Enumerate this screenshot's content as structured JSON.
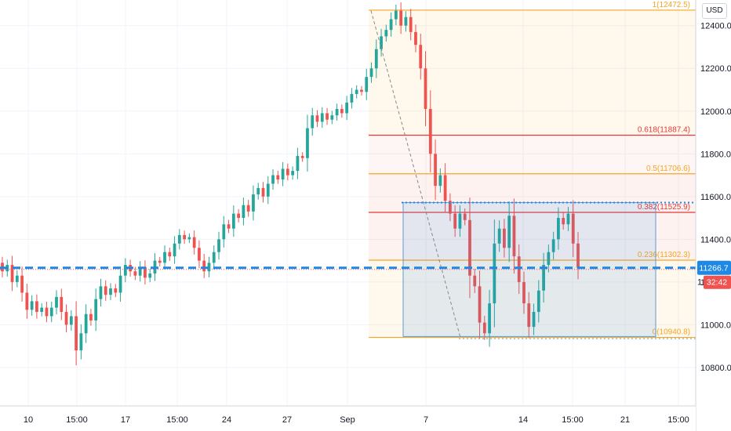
{
  "currency_button": "USD",
  "chart_data": {
    "type": "candlestick",
    "y_axis": {
      "ticks": [
        10800,
        11000,
        11200,
        11400,
        11600,
        11800,
        12000,
        12200,
        12400
      ],
      "tick_labels": [
        "10800.0",
        "11000.0",
        "11200.0",
        "11400.0",
        "11600.0",
        "11800.0",
        "12000.0",
        "12200.0",
        "12400.0"
      ],
      "range": [
        10620,
        12520
      ]
    },
    "x_axis": {
      "tick_labels": [
        "10",
        "15:00",
        "17",
        "15:00",
        "24",
        "27",
        "Sep",
        "7",
        "14",
        "15:00",
        "21",
        "15:00"
      ]
    },
    "grid": true,
    "colors": {
      "up": "#26a69a",
      "down": "#ef5350",
      "fib_orange": "#f5a623",
      "fib_red": "#e53935",
      "range_box": "#1e88e5",
      "price_line": "#1e88e5",
      "price_badge": "#ef5350"
    },
    "last_price": "11266.7",
    "countdown": "32:42",
    "horizontal_line_price": 11266.7,
    "dotted_line_price": 11572,
    "fibonacci": [
      {
        "level": "1",
        "price": 12472.5,
        "label": "1(12472.5)",
        "color": "#f5a623"
      },
      {
        "level": "0.618",
        "price": 11887.4,
        "label": "0.618(11887.4)",
        "color": "#e53935"
      },
      {
        "level": "0.5",
        "price": 11706.6,
        "label": "0.5(11706.6)",
        "color": "#f5a623"
      },
      {
        "level": "0.382",
        "price": 11525.9,
        "label": "0.382(11525.9)",
        "color": "#e53935"
      },
      {
        "level": "0.236",
        "price": 11302.3,
        "label": "0.236(11302.3)",
        "color": "#f5a623"
      },
      {
        "level": "0",
        "price": 10940.8,
        "label": "0(10940.8)",
        "color": "#f5a623"
      }
    ],
    "range_box": {
      "top_price": 11572,
      "bottom_price": 10945
    },
    "price_path": [
      [
        0,
        11290
      ],
      [
        5,
        11230
      ],
      [
        10,
        11160
      ],
      [
        15,
        11080
      ],
      [
        18,
        11040
      ],
      [
        22,
        11120
      ],
      [
        26,
        11060
      ],
      [
        30,
        11000
      ],
      [
        32,
        10870
      ],
      [
        35,
        11050
      ],
      [
        38,
        11180
      ],
      [
        42,
        11150
      ],
      [
        46,
        11260
      ],
      [
        50,
        11240
      ],
      [
        53,
        11300
      ],
      [
        56,
        11330
      ],
      [
        60,
        11380
      ],
      [
        64,
        11420
      ],
      [
        68,
        11400
      ],
      [
        72,
        11360
      ],
      [
        75,
        11300
      ],
      [
        78,
        11340
      ],
      [
        82,
        11470
      ],
      [
        86,
        11530
      ],
      [
        90,
        11580
      ],
      [
        94,
        11640
      ],
      [
        98,
        11700
      ],
      [
        101,
        11730
      ],
      [
        104,
        11790
      ],
      [
        107,
        11920
      ],
      [
        111,
        11990
      ],
      [
        114,
        11980
      ],
      [
        117,
        12040
      ],
      [
        120,
        12100
      ],
      [
        123,
        12160
      ],
      [
        126,
        12290
      ],
      [
        129,
        12380
      ],
      [
        132,
        12440
      ],
      [
        134,
        12470
      ],
      [
        136,
        12370
      ],
      [
        138,
        12310
      ],
      [
        140,
        12200
      ],
      [
        142,
        12010
      ],
      [
        144,
        11800
      ],
      [
        146,
        11650
      ],
      [
        148,
        11700
      ],
      [
        150,
        11580
      ],
      [
        152,
        11520
      ],
      [
        154,
        11450
      ],
      [
        156,
        11520
      ],
      [
        158,
        11490
      ],
      [
        160,
        11230
      ],
      [
        163,
        11180
      ],
      [
        165,
        11010
      ],
      [
        167,
        10960
      ],
      [
        169,
        11100
      ],
      [
        172,
        11380
      ],
      [
        175,
        11450
      ],
      [
        178,
        11360
      ],
      [
        181,
        11510
      ],
      [
        184,
        11320
      ],
      [
        186,
        11200
      ],
      [
        188,
        11100
      ],
      [
        190,
        10990
      ],
      [
        192,
        11060
      ],
      [
        194,
        11160
      ],
      [
        196,
        11280
      ],
      [
        198,
        11340
      ],
      [
        201,
        11400
      ],
      [
        204,
        11500
      ],
      [
        207,
        11470
      ],
      [
        210,
        11520
      ],
      [
        213,
        11380
      ],
      [
        215,
        11266.7
      ]
    ],
    "candles": [
      [
        11290,
        11250
      ],
      [
        11250,
        11280
      ],
      [
        11280,
        11200
      ],
      [
        11200,
        11230
      ],
      [
        11230,
        11150
      ],
      [
        11150,
        11070
      ],
      [
        11070,
        11110
      ],
      [
        11110,
        11060
      ],
      [
        11060,
        11080
      ],
      [
        11080,
        11040
      ],
      [
        11040,
        11080
      ],
      [
        11080,
        11130
      ],
      [
        11130,
        11060
      ],
      [
        11060,
        11000
      ],
      [
        11000,
        11040
      ],
      [
        11040,
        10880
      ],
      [
        10880,
        10960
      ],
      [
        10960,
        11050
      ],
      [
        11050,
        11020
      ],
      [
        11020,
        11120
      ],
      [
        11120,
        11180
      ],
      [
        11180,
        11140
      ],
      [
        11140,
        11170
      ],
      [
        11170,
        11150
      ],
      [
        11150,
        11230
      ],
      [
        11230,
        11280
      ],
      [
        11280,
        11250
      ],
      [
        11250,
        11230
      ],
      [
        11230,
        11270
      ],
      [
        11270,
        11220
      ],
      [
        11220,
        11240
      ],
      [
        11240,
        11300
      ],
      [
        11300,
        11290
      ],
      [
        11290,
        11340
      ],
      [
        11340,
        11320
      ],
      [
        11320,
        11380
      ],
      [
        11380,
        11420
      ],
      [
        11420,
        11400
      ],
      [
        11400,
        11410
      ],
      [
        11410,
        11360
      ],
      [
        11360,
        11300
      ],
      [
        11300,
        11250
      ],
      [
        11250,
        11290
      ],
      [
        11290,
        11340
      ],
      [
        11340,
        11400
      ],
      [
        11400,
        11470
      ],
      [
        11470,
        11450
      ],
      [
        11450,
        11520
      ],
      [
        11520,
        11500
      ],
      [
        11500,
        11560
      ],
      [
        11560,
        11530
      ],
      [
        11530,
        11610
      ],
      [
        11610,
        11640
      ],
      [
        11640,
        11600
      ],
      [
        11600,
        11660
      ],
      [
        11660,
        11700
      ],
      [
        11700,
        11680
      ],
      [
        11680,
        11730
      ],
      [
        11730,
        11700
      ],
      [
        11700,
        11720
      ],
      [
        11720,
        11790
      ],
      [
        11790,
        11780
      ],
      [
        11780,
        11920
      ],
      [
        11920,
        11980
      ],
      [
        11980,
        11950
      ],
      [
        11950,
        11990
      ],
      [
        11990,
        11960
      ],
      [
        11960,
        11980
      ],
      [
        11980,
        12010
      ],
      [
        12010,
        11990
      ],
      [
        11990,
        12040
      ],
      [
        12040,
        12080
      ],
      [
        12080,
        12100
      ],
      [
        12100,
        12090
      ],
      [
        12090,
        12160
      ],
      [
        12160,
        12200
      ],
      [
        12200,
        12290
      ],
      [
        12290,
        12350
      ],
      [
        12350,
        12380
      ],
      [
        12380,
        12430
      ],
      [
        12430,
        12470
      ],
      [
        12470,
        12400
      ],
      [
        12400,
        12440
      ],
      [
        12440,
        12370
      ],
      [
        12370,
        12310
      ],
      [
        12310,
        12200
      ],
      [
        12200,
        12010
      ],
      [
        12010,
        11800
      ],
      [
        11800,
        11650
      ],
      [
        11650,
        11700
      ],
      [
        11700,
        11580
      ],
      [
        11580,
        11520
      ],
      [
        11520,
        11450
      ],
      [
        11450,
        11520
      ],
      [
        11520,
        11490
      ],
      [
        11490,
        11230
      ],
      [
        11230,
        11180
      ],
      [
        11180,
        11010
      ],
      [
        11010,
        10960
      ],
      [
        10960,
        11100
      ],
      [
        11100,
        11380
      ],
      [
        11380,
        11450
      ],
      [
        11450,
        11360
      ],
      [
        11360,
        11510
      ],
      [
        11510,
        11320
      ],
      [
        11320,
        11200
      ],
      [
        11200,
        11100
      ],
      [
        11100,
        10990
      ],
      [
        10990,
        11060
      ],
      [
        11060,
        11160
      ],
      [
        11160,
        11280
      ],
      [
        11280,
        11340
      ],
      [
        11340,
        11400
      ],
      [
        11400,
        11500
      ],
      [
        11500,
        11470
      ],
      [
        11470,
        11520
      ],
      [
        11520,
        11380
      ],
      [
        11380,
        11266.7
      ]
    ]
  }
}
